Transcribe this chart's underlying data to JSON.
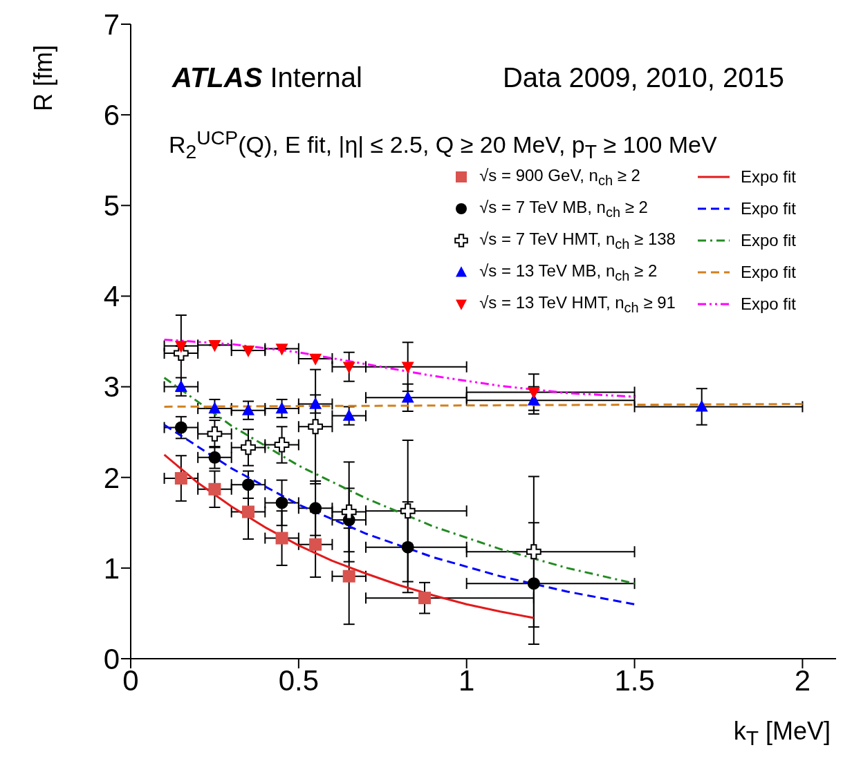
{
  "chart_data": {
    "type": "scatter",
    "xlabel": "k$_{T}$ [MeV]",
    "ylabel": "R [fm]",
    "annotations": [
      "ATLAS Internal",
      "Data 2009, 2010, 2015",
      "R$_{2}$$^{UCP}$(Q), E fit, |η| ≤ 2.5, Q ≥ 20 MeV, p$_{T}$ ≥ 100 MeV"
    ],
    "xlim": [
      0,
      2.1
    ],
    "xticks": [
      0,
      0.5,
      1,
      1.5,
      2
    ],
    "ylim": [
      0,
      7
    ],
    "yticks": [
      0,
      1,
      2,
      3,
      4,
      5,
      6,
      7
    ],
    "legend": "top right",
    "series": [
      {
        "name": "√s = 900 GeV, n$_{ch}$ ≥ 2",
        "marker": "square",
        "color": "#d9534f",
        "x": [
          0.15,
          0.25,
          0.35,
          0.45,
          0.55,
          0.65,
          0.875
        ],
        "values": [
          1.99,
          1.87,
          1.62,
          1.33,
          1.26,
          0.91,
          0.67
        ],
        "errors": [
          0.25,
          0.2,
          0.3,
          0.3,
          0.36,
          0.53,
          0.17
        ],
        "xerrors": [
          0.05,
          0.05,
          0.05,
          0.05,
          0.05,
          0.05,
          [
            0.7,
            1.2
          ]
        ]
      },
      {
        "name": "√s = 7 TeV MB, n$_{ch}$ ≥ 2",
        "marker": "circle",
        "color": "#000000",
        "x": [
          0.15,
          0.25,
          0.35,
          0.45,
          0.55,
          0.65,
          0.825,
          1.2
        ],
        "values": [
          2.55,
          2.22,
          1.92,
          1.72,
          1.66,
          1.53,
          1.23,
          0.83
        ],
        "errors": [
          0.12,
          0.12,
          0.15,
          0.25,
          0.3,
          0.35,
          0.5,
          0.67
        ],
        "xerrors": [
          0.05,
          0.05,
          0.05,
          0.05,
          0.05,
          0.05,
          [
            0.7,
            1.0
          ],
          [
            1.0,
            1.5
          ]
        ]
      },
      {
        "name": "√s = 7 TeV HMT, n$_{ch}$ ≥ 138",
        "marker": "cross",
        "color": "#000000",
        "x": [
          0.15,
          0.25,
          0.35,
          0.45,
          0.55,
          0.65,
          0.825,
          1.2
        ],
        "values": [
          3.37,
          2.48,
          2.33,
          2.36,
          2.56,
          1.62,
          1.63,
          1.18
        ],
        "errors": [
          0.42,
          0.15,
          0.2,
          0.2,
          0.63,
          0.55,
          0.78,
          0.83
        ],
        "xerrors": [
          0.05,
          0.05,
          0.05,
          0.05,
          0.05,
          0.05,
          [
            0.7,
            1.0
          ],
          [
            1.0,
            1.5
          ]
        ]
      },
      {
        "name": "√s = 13 TeV MB, n$_{ch}$ ≥ 2",
        "marker": "triangle",
        "color": "#0000ff",
        "x": [
          0.15,
          0.25,
          0.35,
          0.45,
          0.55,
          0.65,
          0.825,
          1.2,
          1.7
        ],
        "values": [
          3.0,
          2.76,
          2.74,
          2.76,
          2.81,
          2.68,
          2.88,
          2.85,
          2.78
        ],
        "errors": [
          0.1,
          0.1,
          0.1,
          0.1,
          0.1,
          0.1,
          0.15,
          0.15,
          0.2
        ],
        "xerrors": [
          0.05,
          0.05,
          0.05,
          0.05,
          0.05,
          0.05,
          [
            0.7,
            1.0
          ],
          [
            1.0,
            1.5
          ],
          [
            1.5,
            2.0
          ]
        ]
      },
      {
        "name": "√s = 13 TeV HMT, n$_{ch}$ ≥ 91",
        "marker": "triangle-down",
        "color": "#ff0000",
        "x": [
          0.15,
          0.25,
          0.35,
          0.45,
          0.55,
          0.65,
          0.825,
          1.2
        ],
        "values": [
          3.45,
          3.46,
          3.4,
          3.42,
          3.31,
          3.22,
          3.22,
          2.94
        ],
        "errors": [
          null,
          null,
          null,
          null,
          null,
          0.16,
          0.27,
          0.2
        ],
        "xerrors": [
          0.05,
          0.05,
          0.05,
          0.05,
          0.05,
          0.05,
          [
            0.7,
            1.0
          ],
          [
            1.0,
            1.5
          ]
        ]
      },
      {
        "name": "Expo fit",
        "type": "line",
        "line_style": "solid",
        "color": "#e31a1c",
        "x": [
          0.1,
          0.2,
          0.3,
          0.4,
          0.5,
          0.6,
          0.7,
          0.8,
          0.9,
          1.0,
          1.1,
          1.2
        ],
        "values": [
          2.25,
          1.94,
          1.68,
          1.45,
          1.25,
          1.08,
          0.94,
          0.81,
          0.7,
          0.6,
          0.52,
          0.45
        ]
      },
      {
        "name": "Expo fit",
        "type": "line",
        "line_style": "dashed",
        "color": "#0000ff",
        "x": [
          0.1,
          0.3,
          0.5,
          0.7,
          0.9,
          1.1,
          1.3,
          1.5
        ],
        "values": [
          2.58,
          2.1,
          1.7,
          1.38,
          1.12,
          0.91,
          0.74,
          0.6
        ]
      },
      {
        "name": "Expo fit",
        "type": "line",
        "line_style": "dashdot",
        "color": "#228b22",
        "x": [
          0.1,
          0.3,
          0.5,
          0.7,
          0.9,
          1.1,
          1.3,
          1.5
        ],
        "values": [
          3.1,
          2.57,
          2.13,
          1.77,
          1.46,
          1.21,
          1.0,
          0.83
        ]
      },
      {
        "name": "Expo fit",
        "type": "line",
        "line_style": "dashed",
        "color": "#d2801e",
        "x": [
          0.1,
          2.0
        ],
        "values": [
          2.78,
          2.81
        ]
      },
      {
        "name": "Expo fit",
        "type": "line",
        "line_style": "dashdotdot",
        "color": "#ff00ff",
        "x": [
          0.1,
          0.3,
          0.5,
          0.7,
          0.9,
          1.1,
          1.3,
          1.5
        ],
        "values": [
          3.52,
          3.47,
          3.38,
          3.25,
          3.12,
          3.01,
          2.93,
          2.89
        ]
      }
    ]
  }
}
